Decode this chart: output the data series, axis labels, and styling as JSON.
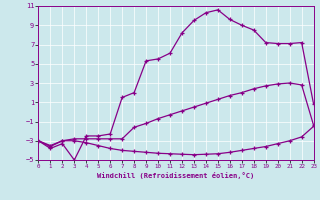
{
  "xlabel": "Windchill (Refroidissement éolien,°C)",
  "xlim": [
    0,
    23
  ],
  "ylim": [
    -5,
    11
  ],
  "xticks": [
    0,
    1,
    2,
    3,
    4,
    5,
    6,
    7,
    8,
    9,
    10,
    11,
    12,
    13,
    14,
    15,
    16,
    17,
    18,
    19,
    20,
    21,
    22,
    23
  ],
  "yticks": [
    -5,
    -3,
    -1,
    1,
    3,
    5,
    7,
    9,
    11
  ],
  "bg_color": "#cce8ec",
  "line_color": "#880088",
  "line1_x": [
    0,
    1,
    2,
    3,
    4,
    5,
    6,
    7,
    8,
    9,
    10,
    11,
    12,
    13,
    14,
    15,
    16,
    17,
    18,
    19,
    20,
    21,
    22,
    23
  ],
  "line1_y": [
    -3.0,
    -3.8,
    -3.3,
    -5.0,
    -2.5,
    -2.5,
    -2.3,
    1.5,
    2.0,
    5.3,
    5.5,
    6.1,
    8.2,
    9.5,
    10.3,
    10.6,
    9.6,
    9.0,
    8.5,
    7.2,
    7.1,
    7.1,
    7.2,
    0.8
  ],
  "line2_x": [
    0,
    1,
    2,
    3,
    4,
    5,
    6,
    7,
    8,
    9,
    10,
    11,
    12,
    13,
    14,
    15,
    16,
    17,
    18,
    19,
    20,
    21,
    22,
    23
  ],
  "line2_y": [
    -3.0,
    -3.6,
    -3.0,
    -2.8,
    -2.8,
    -2.8,
    -2.8,
    -2.8,
    -1.6,
    -1.2,
    -0.7,
    -0.3,
    0.1,
    0.5,
    0.9,
    1.3,
    1.7,
    2.0,
    2.4,
    2.7,
    2.9,
    3.0,
    2.8,
    -1.4
  ],
  "line3_x": [
    0,
    1,
    2,
    3,
    4,
    5,
    6,
    7,
    8,
    9,
    10,
    11,
    12,
    13,
    14,
    15,
    16,
    17,
    18,
    19,
    20,
    21,
    22,
    23
  ],
  "line3_y": [
    -3.0,
    -3.5,
    -3.0,
    -3.0,
    -3.2,
    -3.5,
    -3.8,
    -4.0,
    -4.1,
    -4.2,
    -4.3,
    -4.35,
    -4.4,
    -4.45,
    -4.4,
    -4.35,
    -4.2,
    -4.0,
    -3.8,
    -3.6,
    -3.3,
    -3.0,
    -2.6,
    -1.5
  ]
}
